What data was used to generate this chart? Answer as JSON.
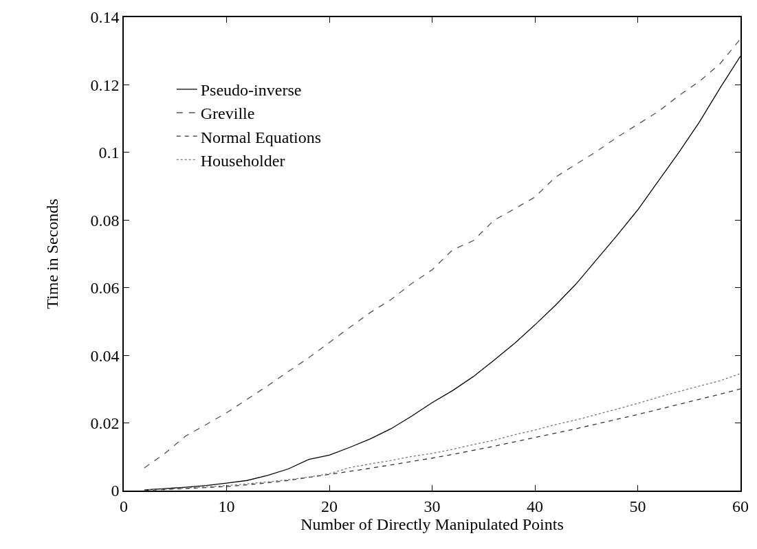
{
  "chart_data": {
    "type": "line",
    "xlabel": "Number of Directly Manipulated Points",
    "ylabel": "Time in Seconds",
    "x": [
      2,
      4,
      6,
      8,
      10,
      12,
      14,
      16,
      18,
      20,
      22,
      24,
      26,
      28,
      30,
      32,
      34,
      36,
      38,
      40,
      42,
      44,
      46,
      48,
      50,
      52,
      54,
      56,
      58,
      60
    ],
    "series": [
      {
        "name": "Pseudo-inverse",
        "color": "#000000",
        "line_style": "solid",
        "values": [
          0.0002,
          0.0006,
          0.001,
          0.0015,
          0.0022,
          0.003,
          0.0045,
          0.0064,
          0.0092,
          0.0105,
          0.0128,
          0.0153,
          0.0183,
          0.022,
          0.026,
          0.0296,
          0.0337,
          0.0385,
          0.0435,
          0.049,
          0.0548,
          0.0611,
          0.0683,
          0.0755,
          0.083,
          0.0915,
          0.1,
          0.109,
          0.119,
          0.1285
        ]
      },
      {
        "name": "Greville",
        "color": "#555555",
        "line_style": "dashed",
        "values": [
          0.0067,
          0.011,
          0.0161,
          0.0195,
          0.023,
          0.027,
          0.031,
          0.0352,
          0.0393,
          0.0438,
          0.0483,
          0.0527,
          0.0565,
          0.0612,
          0.0653,
          0.0712,
          0.0739,
          0.0799,
          0.0833,
          0.0868,
          0.0927,
          0.0965,
          0.1003,
          0.1045,
          0.1083,
          0.1121,
          0.1168,
          0.121,
          0.1262,
          0.1336
        ]
      },
      {
        "name": "Normal Equations",
        "color": "#333333",
        "line_style": "dashed",
        "values": [
          0.0001,
          0.0003,
          0.0006,
          0.0009,
          0.0012,
          0.0017,
          0.0023,
          0.003,
          0.0039,
          0.0048,
          0.0057,
          0.0066,
          0.0076,
          0.0086,
          0.0096,
          0.0107,
          0.0119,
          0.0131,
          0.0144,
          0.0157,
          0.017,
          0.0183,
          0.0197,
          0.0211,
          0.0225,
          0.024,
          0.0255,
          0.027,
          0.0285,
          0.0301
        ]
      },
      {
        "name": "Householder",
        "color": "#777777",
        "line_style": "dotted",
        "values": [
          0.0002,
          0.0004,
          0.0008,
          0.0011,
          0.0015,
          0.002,
          0.0026,
          0.0032,
          0.004,
          0.005,
          0.0068,
          0.0079,
          0.0089,
          0.0101,
          0.011,
          0.0122,
          0.0136,
          0.0149,
          0.0165,
          0.0179,
          0.0195,
          0.0209,
          0.0225,
          0.0241,
          0.0258,
          0.0276,
          0.0293,
          0.0309,
          0.0325,
          0.0346
        ]
      }
    ],
    "xlim": [
      0,
      60
    ],
    "xticks": [
      0,
      10,
      20,
      30,
      40,
      50,
      60
    ],
    "ylim": [
      0,
      0.14
    ],
    "yticks": [
      0,
      0.02,
      0.04,
      0.06,
      0.08,
      0.1,
      0.12,
      0.14
    ],
    "legend": "top left",
    "marker": "none"
  }
}
